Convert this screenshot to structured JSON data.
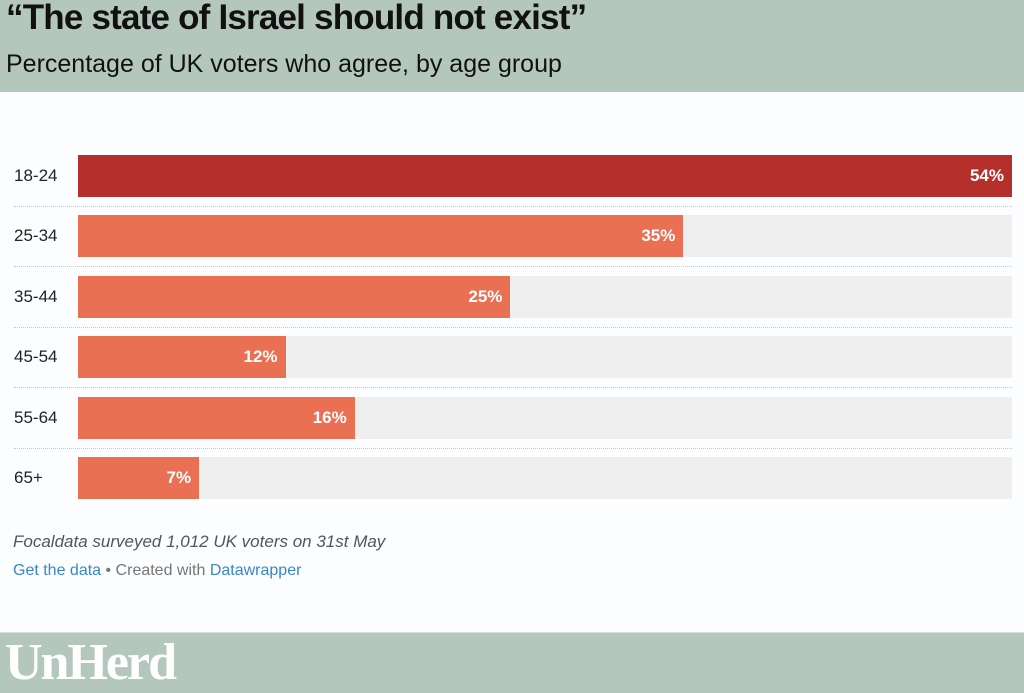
{
  "header": {
    "title": "“The state of Israel should not exist”",
    "subtitle": "Percentage of UK voters who agree, by age group"
  },
  "chart_data": {
    "type": "bar",
    "orientation": "horizontal",
    "title": "“The state of Israel should not exist”",
    "subtitle": "Percentage of UK voters who agree, by age group",
    "categories": [
      "18-24",
      "25-34",
      "35-44",
      "45-54",
      "55-64",
      "65+"
    ],
    "values": [
      54,
      35,
      25,
      12,
      16,
      7
    ],
    "value_labels": [
      "54%",
      "35%",
      "25%",
      "12%",
      "16%",
      "7%"
    ],
    "xlim": [
      0,
      54
    ],
    "unit": "%",
    "highlight_category": "18-24",
    "colors": {
      "highlight": "#b5302a",
      "default": "#ea7054",
      "track": "#efeff0"
    },
    "grid": false
  },
  "footer": {
    "note": "Focaldata surveyed 1,012 UK voters on 31st May",
    "get_data": "Get the data",
    "separator": " • Created with ",
    "datawrapper": "Datawrapper",
    "logo": "UnHerd"
  }
}
